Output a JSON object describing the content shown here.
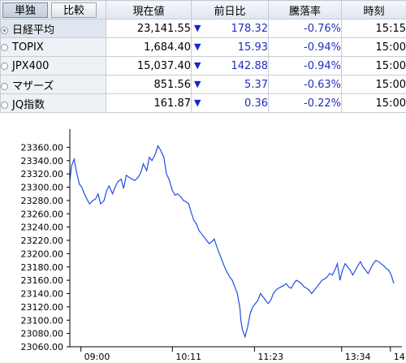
{
  "tabs": [
    {
      "label": "単独",
      "active": true
    },
    {
      "label": "比較",
      "active": false
    }
  ],
  "columns": {
    "price": "現在値",
    "change": "前日比",
    "pct": "騰落率",
    "time": "時刻"
  },
  "rows": [
    {
      "name": "日経平均",
      "price": "23,141.55",
      "arrow": "▼",
      "change": "178.32",
      "pct": "-0.76%",
      "time": "15:15",
      "selected": true
    },
    {
      "name": "TOPIX",
      "price": "1,684.40",
      "arrow": "▼",
      "change": "15.93",
      "pct": "-0.94%",
      "time": "15:00",
      "selected": false
    },
    {
      "name": "JPX400",
      "price": "15,037.40",
      "arrow": "▼",
      "change": "142.88",
      "pct": "-0.94%",
      "time": "15:00",
      "selected": false
    },
    {
      "name": "マザーズ",
      "price": "851.56",
      "arrow": "▼",
      "change": "5.37",
      "pct": "-0.63%",
      "time": "15:00",
      "selected": false
    },
    {
      "name": "JQ指数",
      "price": "161.87",
      "arrow": "▼",
      "change": "0.36",
      "pct": "-0.22%",
      "time": "15:00",
      "selected": false
    }
  ],
  "chart_data": {
    "type": "line",
    "title": "",
    "xlabel": "",
    "ylabel": "",
    "ylim": [
      23060,
      23380
    ],
    "xlim": [
      0,
      379
    ],
    "y_ticks": [
      "23060.00",
      "23080.00",
      "23100.00",
      "23120.00",
      "23140.00",
      "23160.00",
      "23180.00",
      "23200.00",
      "23220.00",
      "23240.00",
      "23260.00",
      "23280.00",
      "23300.00",
      "23320.00",
      "23340.00",
      "23360.00"
    ],
    "x_ticks": [
      {
        "pos": 13,
        "label": "09:00"
      },
      {
        "pos": 120,
        "label": "10:11"
      },
      {
        "pos": 216,
        "label": "11:23"
      },
      {
        "pos": 318,
        "label": "13:34"
      },
      {
        "pos": 375,
        "label": "14:"
      }
    ],
    "grid": false,
    "color": "#1f4fe6",
    "series": [
      {
        "x": [
          0,
          2,
          5,
          8,
          11,
          14,
          17,
          20,
          23,
          27,
          30,
          33,
          36,
          40,
          43,
          46,
          50,
          53,
          56,
          60,
          63,
          66,
          70,
          73,
          76,
          80,
          83,
          86,
          90,
          93,
          96,
          100,
          103,
          106,
          110,
          113,
          116,
          120,
          123,
          126,
          130,
          133,
          136,
          139,
          142,
          145,
          148,
          151,
          154,
          157,
          160,
          163,
          166,
          169,
          172,
          175,
          178,
          181,
          184,
          187,
          190,
          193,
          196,
          199,
          200,
          202,
          205,
          208,
          211,
          214,
          217,
          220,
          223,
          226,
          229,
          232,
          235,
          238,
          241,
          244,
          247,
          250,
          253,
          256,
          259,
          262,
          265,
          268,
          271,
          274,
          277,
          280,
          283,
          286,
          289,
          292,
          295,
          298,
          301,
          304,
          307,
          310,
          313,
          316,
          319,
          322,
          325,
          328,
          331,
          334,
          337,
          340,
          343,
          346,
          349,
          352,
          355,
          358,
          361,
          364,
          367,
          370,
          373,
          376,
          379
        ],
        "y": [
          23310,
          23332,
          23342,
          23322,
          23305,
          23300,
          23290,
          23282,
          23275,
          23280,
          23282,
          23290,
          23275,
          23280,
          23295,
          23302,
          23290,
          23300,
          23308,
          23312,
          23298,
          23318,
          23314,
          23312,
          23310,
          23315,
          23322,
          23335,
          23325,
          23345,
          23340,
          23350,
          23362,
          23356,
          23345,
          23320,
          23312,
          23295,
          23288,
          23290,
          23285,
          23280,
          23278,
          23275,
          23262,
          23250,
          23245,
          23235,
          23230,
          23225,
          23220,
          23215,
          23218,
          23222,
          23210,
          23200,
          23190,
          23180,
          23172,
          23165,
          23160,
          23150,
          23140,
          23118,
          23100,
          23085,
          23075,
          23090,
          23110,
          23120,
          23125,
          23130,
          23140,
          23135,
          23130,
          23125,
          23130,
          23140,
          23145,
          23148,
          23150,
          23152,
          23155,
          23150,
          23148,
          23155,
          23160,
          23158,
          23155,
          23150,
          23148,
          23145,
          23140,
          23145,
          23150,
          23155,
          23160,
          23162,
          23165,
          23170,
          23168,
          23175,
          23185,
          23160,
          23175,
          23185,
          23180,
          23175,
          23168,
          23175,
          23182,
          23188,
          23180,
          23175,
          23170,
          23178,
          23185,
          23190,
          23188,
          23185,
          23182,
          23178,
          23175,
          23168,
          23155
        ]
      }
    ]
  }
}
